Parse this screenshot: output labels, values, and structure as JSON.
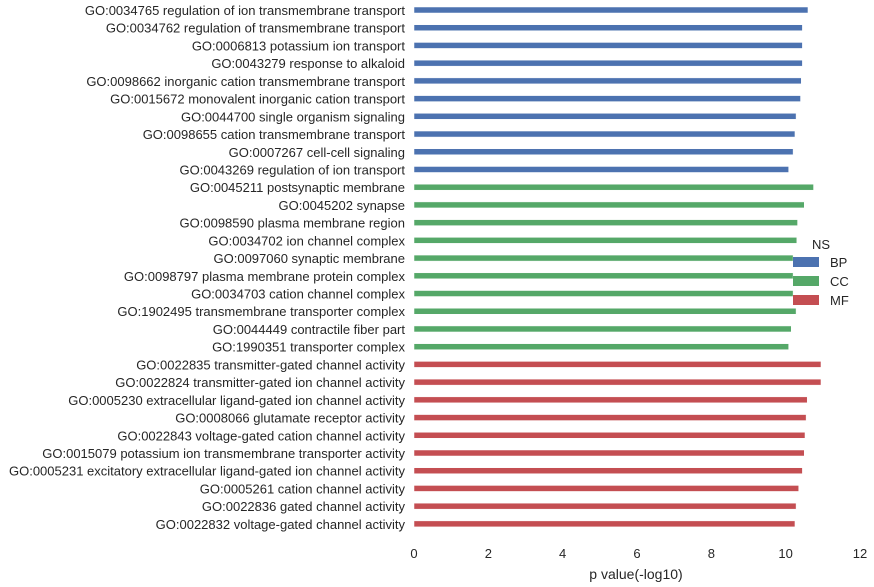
{
  "chart_data": {
    "type": "bar",
    "orientation": "horizontal",
    "xlabel": "p value(-log10)",
    "ylabel": "",
    "title": "",
    "xlim": [
      0,
      12
    ],
    "xticks": [
      0,
      2,
      4,
      6,
      8,
      10,
      12
    ],
    "grid": false,
    "legend": {
      "title": "NS",
      "placement": "right",
      "entries": [
        {
          "name": "BP",
          "color": "#4c72b0"
        },
        {
          "name": "CC",
          "color": "#55a868"
        },
        {
          "name": "MF",
          "color": "#c44e52"
        }
      ]
    },
    "categories": [
      "GO:0034765 regulation of ion transmembrane transport",
      "GO:0034762 regulation of transmembrane transport",
      "GO:0006813 potassium ion transport",
      "GO:0043279 response to alkaloid",
      "GO:0098662 inorganic cation transmembrane transport",
      "GO:0015672 monovalent inorganic cation transport",
      "GO:0044700 single organism signaling",
      "GO:0098655 cation transmembrane transport",
      "GO:0007267 cell-cell signaling",
      "GO:0043269 regulation of ion transport",
      "GO:0045211 postsynaptic membrane",
      "GO:0045202 synapse",
      "GO:0098590 plasma membrane region",
      "GO:0034702 ion channel complex",
      "GO:0097060 synaptic membrane",
      "GO:0098797 plasma membrane protein complex",
      "GO:0034703 cation channel complex",
      "GO:1902495 transmembrane transporter complex",
      "GO:0044449 contractile fiber part",
      "GO:1990351 transporter complex",
      "GO:0022835 transmitter-gated channel activity",
      "GO:0022824 transmitter-gated ion channel activity",
      "GO:0005230 extracellular ligand-gated ion channel activity",
      "GO:0008066 glutamate receptor activity",
      "GO:0022843 voltage-gated cation channel activity",
      "GO:0015079 potassium ion transmembrane transporter activity",
      "GO:0005231 excitatory extracellular ligand-gated ion channel activity",
      "GO:0005261 cation channel activity",
      "GO:0022836 gated channel activity",
      "GO:0022832 voltage-gated channel activity"
    ],
    "values": [
      10.6,
      10.45,
      10.45,
      10.45,
      10.42,
      10.4,
      10.28,
      10.25,
      10.2,
      10.08,
      10.75,
      10.5,
      10.32,
      10.3,
      10.2,
      10.2,
      10.2,
      10.28,
      10.15,
      10.08,
      10.95,
      10.95,
      10.58,
      10.55,
      10.52,
      10.5,
      10.45,
      10.35,
      10.28,
      10.25
    ],
    "groups": [
      "BP",
      "BP",
      "BP",
      "BP",
      "BP",
      "BP",
      "BP",
      "BP",
      "BP",
      "BP",
      "CC",
      "CC",
      "CC",
      "CC",
      "CC",
      "CC",
      "CC",
      "CC",
      "CC",
      "CC",
      "MF",
      "MF",
      "MF",
      "MF",
      "MF",
      "MF",
      "MF",
      "MF",
      "MF",
      "MF"
    ],
    "colors": {
      "BP": "#4c72b0",
      "CC": "#55a868",
      "MF": "#c44e52"
    }
  }
}
